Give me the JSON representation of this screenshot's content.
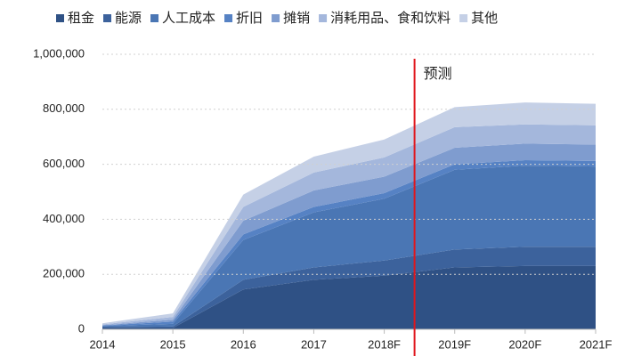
{
  "chart_data": {
    "type": "stacked_area",
    "categories": [
      "2014",
      "2015",
      "2016",
      "2017",
      "2018F",
      "2019F",
      "2020F",
      "2021F"
    ],
    "series": [
      {
        "name": "租金",
        "color": "#2f5185",
        "values": [
          5000,
          5000,
          145000,
          180000,
          195000,
          225000,
          230000,
          230000
        ]
      },
      {
        "name": "能源",
        "color": "#3c629c",
        "values": [
          3000,
          5000,
          35000,
          45000,
          55000,
          65000,
          70000,
          70000
        ]
      },
      {
        "name": "人工成本",
        "color": "#4a76b4",
        "values": [
          4000,
          10000,
          145000,
          200000,
          225000,
          290000,
          295000,
          292000
        ]
      },
      {
        "name": "折旧",
        "color": "#5682c4",
        "values": [
          2000,
          8000,
          20000,
          20000,
          20000,
          20000,
          20000,
          20000
        ]
      },
      {
        "name": "摊销",
        "color": "#7f9ccf",
        "values": [
          1000,
          7000,
          50000,
          60000,
          60000,
          60000,
          60000,
          60000
        ]
      },
      {
        "name": "消耗用品、食和饮料",
        "color": "#a4b7dc",
        "values": [
          3000,
          10000,
          50000,
          65000,
          70000,
          75000,
          70000,
          70000
        ]
      },
      {
        "name": "其他",
        "color": "#c5d0e6",
        "values": [
          4000,
          13000,
          45000,
          58000,
          65000,
          73000,
          80000,
          78000
        ]
      }
    ],
    "ylim": [
      0,
      1000000
    ],
    "yticks": [
      0,
      {
        "value": 200000,
        "label": "200,000"
      },
      {
        "value": 400000,
        "label": "400,000"
      },
      {
        "value": 600000,
        "label": "600,000"
      },
      {
        "value": 800000,
        "label": "800,000"
      },
      {
        "value": 1000000,
        "label": "1,000,000"
      }
    ],
    "grid": true,
    "annotations": [
      {
        "text": "预测",
        "color": "#e0161c"
      }
    ]
  }
}
